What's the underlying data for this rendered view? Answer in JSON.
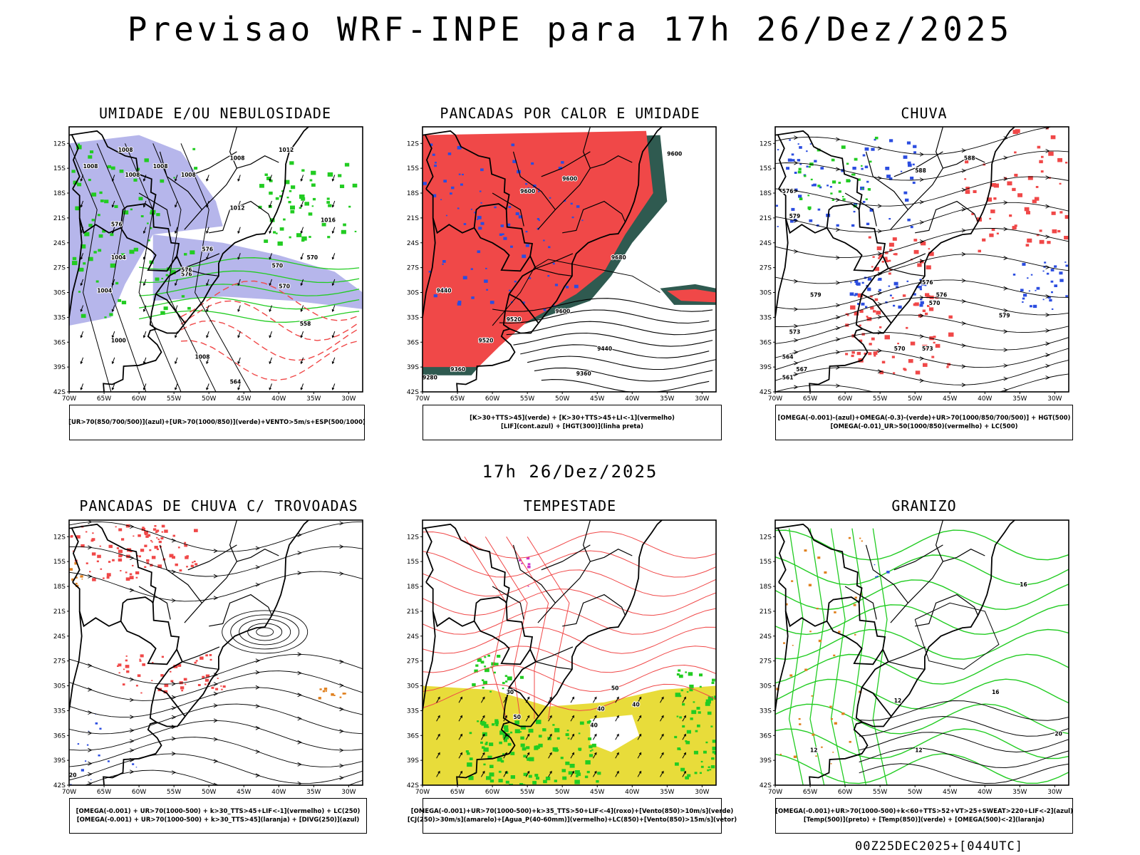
{
  "page": {
    "title": "Previsao WRF-INPE  para 17h 26/Dez/2025",
    "mid_title": "17h 26/Dez/2025",
    "footer": "00Z25DEC2025+[044UTC]"
  },
  "axes": {
    "lat_ticks": [
      "12S",
      "15S",
      "18S",
      "21S",
      "24S",
      "27S",
      "30S",
      "33S",
      "36S",
      "39S",
      "42S"
    ],
    "lon_ticks": [
      "70W",
      "65W",
      "60W",
      "55W",
      "50W",
      "45W",
      "40W",
      "35W",
      "30W"
    ]
  },
  "colors": {
    "blue": "#2b4de0",
    "lavender": "#a9a9e8",
    "green": "#22cc22",
    "red": "#f04848",
    "dark_teal": "#2f5a50",
    "yellow": "#e8dc3a",
    "orange": "#e0801e",
    "purple": "#cc33cc",
    "black": "#000000"
  },
  "chart_data": [
    {
      "type": "heatmap",
      "title": "UMIDADE E/OU NEBULOSIDADE",
      "caption": [
        "[UR>70(850/700/500)](azul)+[UR>70(1000/850)](verde)+VENTO>5m/s+ESP(500/1000)"
      ],
      "xlabel": "",
      "ylabel": "",
      "xlim": [
        -70,
        -28
      ],
      "ylim": [
        -42,
        -10
      ],
      "contour_labels": [
        "1008",
        "1008",
        "1008",
        "1008",
        "1008",
        "1008",
        "1012",
        "1012",
        "1016",
        "1004",
        "1004",
        "1000",
        "1008",
        "576",
        "576",
        "570",
        "570",
        "570",
        "564",
        "558",
        "576",
        "576"
      ]
    },
    {
      "type": "heatmap",
      "title": "PANCADAS POR CALOR E UMIDADE",
      "caption": [
        "[K>30+TTS>45](verde) + [K>30+TTS>45+LI<-1](vermelho)",
        "[LIF](cont.azul) + [HGT(300)](linha preta)"
      ],
      "xlabel": "",
      "ylabel": "",
      "xlim": [
        -70,
        -28
      ],
      "ylim": [
        -42,
        -10
      ],
      "contour_labels": [
        "9600",
        "9600",
        "9600",
        "9680",
        "9520",
        "9600",
        "9520",
        "9440",
        "9440",
        "9360",
        "9360",
        "9280"
      ]
    },
    {
      "type": "heatmap",
      "title": "CHUVA",
      "caption": [
        "[OMEGA(-0.001)-(azul)+OMEGA(-0.3)-(verde)+UR>70(1000/850/700/500)] + HGT(500)",
        "[OMEGA(-0.01)_UR>50(1000/850)(vermelho) + LC(500)"
      ],
      "xlabel": "",
      "ylabel": "",
      "xlim": [
        -70,
        -28
      ],
      "ylim": [
        -42,
        -10
      ],
      "contour_labels": [
        "588",
        "588",
        "576",
        "579",
        "579",
        "573",
        "579",
        "576",
        "570",
        "564",
        "567",
        "570",
        "573",
        "576",
        "561"
      ]
    },
    {
      "type": "heatmap",
      "title": "PANCADAS DE CHUVA C/ TROVOADAS",
      "caption": [
        "[OMEGA(-0.001) + UR>70(1000-500) + k>30_TTS>45+LIF<-1](vermelho) + LC(250)",
        "[OMEGA(-0.001) + UR>70(1000-500) + k>30_TTS>45](laranja) + [DIVG(250)](azul)"
      ],
      "xlabel": "",
      "ylabel": "",
      "xlim": [
        -70,
        -28
      ],
      "ylim": [
        -42,
        -10
      ],
      "contour_labels": [
        "20"
      ]
    },
    {
      "type": "heatmap",
      "title": "TEMPESTADE",
      "caption": [
        "[OMEGA(-0.001)+UR>70(1000-500)+k>35_TTS>50+LIF<-4](roxo)+[Vento(850)>10m/s](verde)",
        "[CJ(250)>30m/s](amarelo)+[Agua_P(40-60mm)](vermelho)+LC(850)+[Vento(850)>15m/s](vetor)"
      ],
      "xlabel": "",
      "ylabel": "",
      "xlim": [
        -70,
        -28
      ],
      "ylim": [
        -42,
        -10
      ],
      "contour_labels": [
        "50",
        "50",
        "40",
        "40",
        "30",
        "40"
      ]
    },
    {
      "type": "heatmap",
      "title": "GRANIZO",
      "caption": [
        "[OMEGA(-0.001)+UR>70(1000-500)+k<60+TTS>52+VT>25+SWEAT>220+LIF<-2](azul)",
        "[Temp(500)](preto) + [Temp(850)](verde) + [OMEGA(500)<-2](laranja)"
      ],
      "xlabel": "",
      "ylabel": "",
      "xlim": [
        -70,
        -28
      ],
      "ylim": [
        -42,
        -10
      ],
      "contour_labels": [
        "16",
        "12",
        "12",
        "16",
        "12",
        "20"
      ]
    }
  ]
}
